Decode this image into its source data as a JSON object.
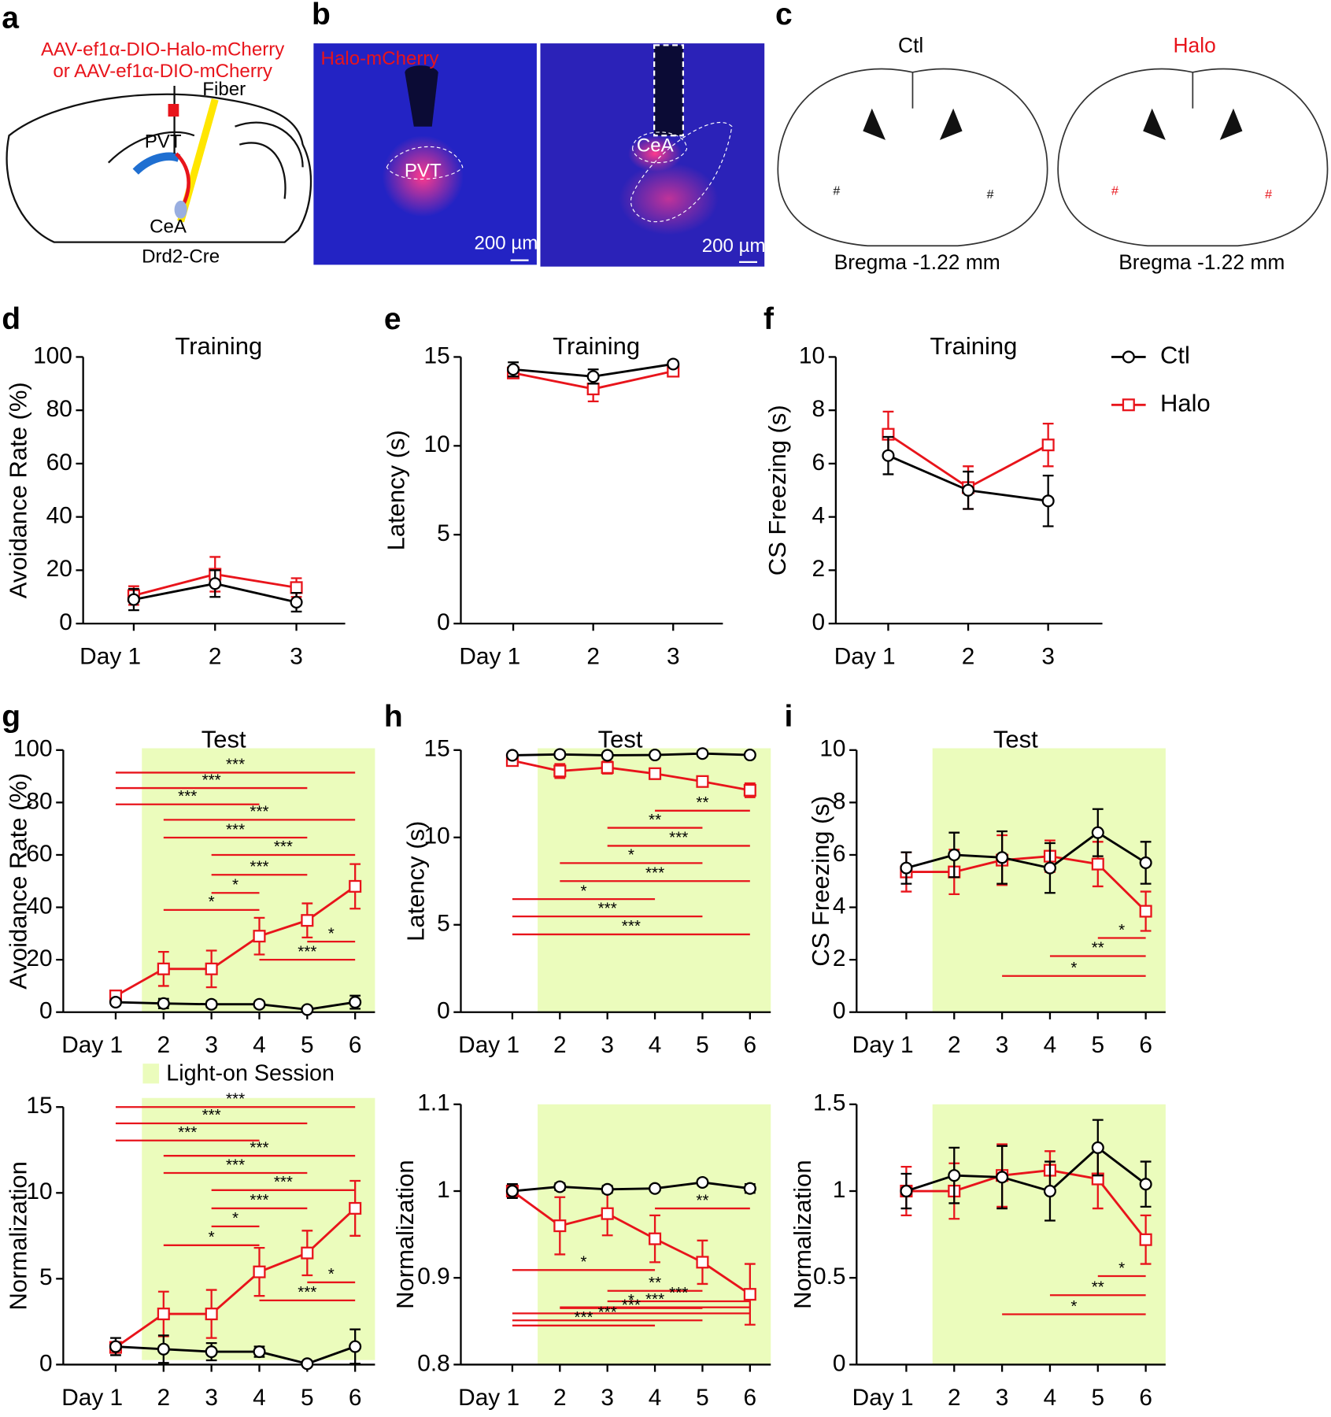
{
  "figure": {
    "a": {
      "letter": "a",
      "virus1": "AAV-ef1α-DIO-Halo-mCherry",
      "virus2": "or AAV-ef1α-DIO-mCherry",
      "fiber": "Fiber",
      "pvt": "PVT",
      "cea": "CeA",
      "mouse": "Drd2-Cre"
    },
    "b": {
      "letter": "b",
      "stain": "Halo-mCherry",
      "pvt": "PVT",
      "cea": "CeA",
      "scale1": "200 µm",
      "scale2": "200 µm"
    },
    "c": {
      "letter": "c",
      "ctl": "Ctl",
      "halo": "Halo",
      "bregma1": "Bregma -1.22 mm",
      "bregma2": "Bregma -1.22 mm"
    }
  },
  "chart_data": [
    {
      "type": "line",
      "panel": "d",
      "title": "Training",
      "ylabel": "Avoidance Rate (%)",
      "categories": [
        "Day 1",
        "2",
        "3"
      ],
      "ylim": [
        0,
        100
      ],
      "yticks": [
        0,
        20,
        40,
        60,
        80,
        100
      ],
      "series": [
        {
          "name": "Ctl",
          "color": "#000000",
          "marker": "circle",
          "values": [
            9,
            15,
            8
          ],
          "errors": [
            4,
            5,
            3.5
          ]
        },
        {
          "name": "Halo",
          "color": "#e8141b",
          "marker": "square",
          "values": [
            10.5,
            18.5,
            13.5
          ],
          "errors": [
            3.5,
            6.5,
            3.5
          ]
        }
      ]
    },
    {
      "type": "line",
      "panel": "e",
      "title": "Training",
      "ylabel": "Latency (s)",
      "categories": [
        "Day 1",
        "2",
        "3"
      ],
      "ylim": [
        0,
        15
      ],
      "yticks": [
        0,
        5,
        10,
        15
      ],
      "series": [
        {
          "name": "Ctl",
          "color": "#000000",
          "marker": "circle",
          "values": [
            14.3,
            13.9,
            14.6
          ],
          "errors": [
            0.4,
            0.4,
            0.15
          ]
        },
        {
          "name": "Halo",
          "color": "#e8141b",
          "marker": "square",
          "values": [
            14.1,
            13.2,
            14.2
          ],
          "errors": [
            0.3,
            0.7,
            0.2
          ]
        }
      ]
    },
    {
      "type": "line",
      "panel": "f",
      "title": "Training",
      "ylabel": "CS Freezing (s)",
      "categories": [
        "Day 1",
        "2",
        "3"
      ],
      "ylim": [
        0,
        10
      ],
      "yticks": [
        0,
        2,
        4,
        6,
        8,
        10
      ],
      "legend": "right",
      "series": [
        {
          "name": "Ctl",
          "color": "#000000",
          "marker": "circle",
          "values": [
            6.3,
            5.0,
            4.6
          ],
          "errors": [
            0.7,
            0.7,
            0.95
          ]
        },
        {
          "name": "Halo",
          "color": "#e8141b",
          "marker": "square",
          "values": [
            7.1,
            5.1,
            6.7
          ],
          "errors": [
            0.85,
            0.8,
            0.8
          ]
        }
      ]
    },
    {
      "type": "line",
      "panel": "g",
      "title": "Test",
      "ylabel": "Avoidance Rate (%)",
      "categories": [
        "Day 1",
        "2",
        "3",
        "4",
        "5",
        "6"
      ],
      "ylim": [
        0,
        100
      ],
      "yticks": [
        0,
        20,
        40,
        60,
        80,
        100
      ],
      "light_on": true,
      "light_on_label": "Light-on Session",
      "shade_color": "#ebfcbc",
      "series": [
        {
          "name": "Ctl",
          "color": "#000000",
          "marker": "circle",
          "values": [
            3.8,
            3.3,
            3.0,
            3.0,
            1.0,
            3.8
          ],
          "errors": [
            1,
            1.8,
            1.2,
            1,
            0.5,
            2.5
          ]
        },
        {
          "name": "Halo",
          "color": "#e8141b",
          "marker": "square",
          "values": [
            6.2,
            16.5,
            16.5,
            29,
            35,
            48
          ],
          "errors": [
            1.5,
            6.5,
            7,
            7,
            6.5,
            8.5
          ]
        }
      ],
      "brackets": [
        {
          "from": 0,
          "to": 5,
          "y": 91.4,
          "label": "***"
        },
        {
          "from": 0,
          "to": 4,
          "y": 85.5,
          "label": "***"
        },
        {
          "from": 0,
          "to": 3,
          "y": 79.3,
          "label": "***"
        },
        {
          "from": 1,
          "to": 5,
          "y": 73.4,
          "label": "***"
        },
        {
          "from": 1,
          "to": 4,
          "y": 66.6,
          "label": "***"
        },
        {
          "from": 2,
          "to": 5,
          "y": 60,
          "label": "***"
        },
        {
          "from": 2,
          "to": 4,
          "y": 52.4,
          "label": "***"
        },
        {
          "from": 2,
          "to": 3,
          "y": 45.5,
          "label": "*"
        },
        {
          "from": 1,
          "to": 3,
          "y": 39,
          "label": "*"
        },
        {
          "from": 4,
          "to": 5,
          "y": 26.9,
          "label": "*"
        },
        {
          "from": 3,
          "to": 5,
          "y": 20,
          "label": "***"
        }
      ]
    },
    {
      "type": "line",
      "panel": "h",
      "title": "Test",
      "ylabel": "Latency (s)",
      "categories": [
        "Day 1",
        "2",
        "3",
        "4",
        "5",
        "6"
      ],
      "ylim": [
        0,
        15
      ],
      "yticks": [
        0,
        5,
        10,
        15
      ],
      "light_on": true,
      "shade_color": "#ebfcbc",
      "series": [
        {
          "name": "Ctl",
          "color": "#000000",
          "marker": "circle",
          "values": [
            14.7,
            14.75,
            14.7,
            14.72,
            14.8,
            14.72
          ],
          "errors": [
            0.1,
            0.1,
            0.1,
            0.1,
            0.1,
            0.1
          ]
        },
        {
          "name": "Halo",
          "color": "#e8141b",
          "marker": "square",
          "values": [
            14.4,
            13.8,
            14.0,
            13.65,
            13.2,
            12.7
          ],
          "errors": [
            0.2,
            0.4,
            0.35,
            0.3,
            0.3,
            0.4
          ]
        }
      ],
      "brackets": [
        {
          "from": 3,
          "to": 5,
          "y": 11.53,
          "label": "**"
        },
        {
          "from": 2,
          "to": 4,
          "y": 10.55,
          "label": "**"
        },
        {
          "from": 2,
          "to": 5,
          "y": 9.52,
          "label": "***"
        },
        {
          "from": 1,
          "to": 4,
          "y": 8.53,
          "label": "*"
        },
        {
          "from": 1,
          "to": 5,
          "y": 7.5,
          "label": "***"
        },
        {
          "from": 0,
          "to": 3,
          "y": 6.47,
          "label": "*"
        },
        {
          "from": 0,
          "to": 4,
          "y": 5.48,
          "label": "***"
        },
        {
          "from": 0,
          "to": 5,
          "y": 4.45,
          "label": "***"
        }
      ]
    },
    {
      "type": "line",
      "panel": "i",
      "title": "Test",
      "ylabel": "CS Freezing (s)",
      "categories": [
        "Day 1",
        "2",
        "3",
        "4",
        "5",
        "6"
      ],
      "ylim": [
        0,
        10
      ],
      "yticks": [
        0,
        2,
        4,
        6,
        8,
        10
      ],
      "light_on": true,
      "shade_color": "#ebfcbc",
      "series": [
        {
          "name": "Ctl",
          "color": "#000000",
          "marker": "circle",
          "values": [
            5.5,
            6.0,
            5.9,
            5.5,
            6.85,
            5.7
          ],
          "errors": [
            0.6,
            0.85,
            1.0,
            0.95,
            0.9,
            0.8
          ]
        },
        {
          "name": "Halo",
          "color": "#e8141b",
          "marker": "square",
          "values": [
            5.35,
            5.35,
            5.8,
            5.95,
            5.65,
            3.85
          ],
          "errors": [
            0.75,
            0.85,
            0.95,
            0.6,
            0.85,
            0.75
          ]
        }
      ],
      "brackets": [
        {
          "from": 4,
          "to": 5,
          "y": 2.83,
          "label": "*"
        },
        {
          "from": 3,
          "to": 5,
          "y": 2.14,
          "label": "**"
        },
        {
          "from": 2,
          "to": 5,
          "y": 1.38,
          "label": "*"
        }
      ]
    },
    {
      "type": "line",
      "ylabel": "Normalization",
      "categories": [
        "Day 1",
        "2",
        "3",
        "4",
        "5",
        "6"
      ],
      "ylim": [
        0,
        15
      ],
      "yticks": [
        0,
        5,
        10,
        15
      ],
      "light_on": true,
      "shade_color": "#ebfcbc",
      "series": [
        {
          "name": "Ctl",
          "color": "#000000",
          "marker": "circle",
          "values": [
            1.05,
            0.9,
            0.75,
            0.75,
            0.05,
            1.05
          ],
          "errors": [
            0.5,
            0.8,
            0.5,
            0.3,
            0.1,
            1.0
          ]
        },
        {
          "name": "Halo",
          "color": "#e8141b",
          "marker": "square",
          "values": [
            1,
            2.95,
            2.95,
            5.4,
            6.5,
            9.1
          ],
          "errors": [
            0.3,
            1.3,
            1.4,
            1.4,
            1.3,
            1.6
          ]
        }
      ],
      "brackets": [
        {
          "from": 0,
          "to": 5,
          "y": 15,
          "label": "***"
        },
        {
          "from": 0,
          "to": 4,
          "y": 14.05,
          "label": "***"
        },
        {
          "from": 0,
          "to": 3,
          "y": 13.05,
          "label": "***"
        },
        {
          "from": 1,
          "to": 5,
          "y": 12.16,
          "label": "***"
        },
        {
          "from": 1,
          "to": 4,
          "y": 11.16,
          "label": "***"
        },
        {
          "from": 2,
          "to": 5,
          "y": 10.16,
          "label": "***"
        },
        {
          "from": 2,
          "to": 4,
          "y": 9.1,
          "label": "***"
        },
        {
          "from": 2,
          "to": 3,
          "y": 8.05,
          "label": "*"
        },
        {
          "from": 1,
          "to": 3,
          "y": 6.95,
          "label": "*"
        },
        {
          "from": 4,
          "to": 5,
          "y": 4.79,
          "label": "*"
        },
        {
          "from": 3,
          "to": 5,
          "y": 3.74,
          "label": "***"
        }
      ]
    },
    {
      "type": "line",
      "ylabel": "Normalization",
      "categories": [
        "Day 1",
        "2",
        "3",
        "4",
        "5",
        "6"
      ],
      "ylim": [
        0.8,
        1.1
      ],
      "yticks": [
        0.8,
        0.9,
        1,
        1.1
      ],
      "light_on": true,
      "shade_color": "#ebfcbc",
      "series": [
        {
          "name": "Ctl",
          "color": "#000000",
          "marker": "circle",
          "values": [
            1.0,
            1.005,
            1.002,
            1.003,
            1.01,
            1.003
          ],
          "errors": [
            0.008,
            0.004,
            0.004,
            0.003,
            0.003,
            0.005
          ]
        },
        {
          "name": "Halo",
          "color": "#e8141b",
          "marker": "square",
          "values": [
            1.0,
            0.96,
            0.974,
            0.945,
            0.918,
            0.881
          ],
          "errors": [
            0.007,
            0.033,
            0.025,
            0.027,
            0.025,
            0.035
          ]
        }
      ],
      "brackets": [
        {
          "from": 3,
          "to": 5,
          "y": 0.98,
          "label": "**"
        },
        {
          "from": 0,
          "to": 3,
          "y": 0.909,
          "label": "*"
        },
        {
          "from": 2,
          "to": 4,
          "y": 0.885,
          "label": "**"
        },
        {
          "from": 1,
          "to": 4,
          "y": 0.865,
          "label": "*"
        },
        {
          "from": 2,
          "to": 5,
          "y": 0.873,
          "label": "***"
        },
        {
          "from": 1,
          "to": 5,
          "y": 0.866,
          "label": "***"
        },
        {
          "from": 0,
          "to": 5,
          "y": 0.859,
          "label": "***"
        },
        {
          "from": 0,
          "to": 4,
          "y": 0.851,
          "label": "***"
        },
        {
          "from": 0,
          "to": 3,
          "y": 0.845,
          "label": "***"
        }
      ]
    },
    {
      "type": "line",
      "ylabel": "Normalization",
      "categories": [
        "Day 1",
        "2",
        "3",
        "4",
        "5",
        "6"
      ],
      "ylim": [
        0,
        1.5
      ],
      "yticks": [
        0,
        0.5,
        1,
        1.5
      ],
      "light_on": true,
      "shade_color": "#ebfcbc",
      "series": [
        {
          "name": "Ctl",
          "color": "#000000",
          "marker": "circle",
          "values": [
            1.0,
            1.09,
            1.08,
            1.0,
            1.25,
            1.04
          ],
          "errors": [
            0.1,
            0.16,
            0.18,
            0.17,
            0.16,
            0.13
          ]
        },
        {
          "name": "Halo",
          "color": "#e8141b",
          "marker": "square",
          "values": [
            1.0,
            1.0,
            1.09,
            1.12,
            1.07,
            0.72
          ],
          "errors": [
            0.14,
            0.16,
            0.18,
            0.11,
            0.17,
            0.14
          ]
        }
      ],
      "brackets": [
        {
          "from": 4,
          "to": 5,
          "y": 0.51,
          "label": "*"
        },
        {
          "from": 3,
          "to": 5,
          "y": 0.4,
          "label": "**"
        },
        {
          "from": 2,
          "to": 5,
          "y": 0.29,
          "label": "*"
        }
      ]
    }
  ]
}
